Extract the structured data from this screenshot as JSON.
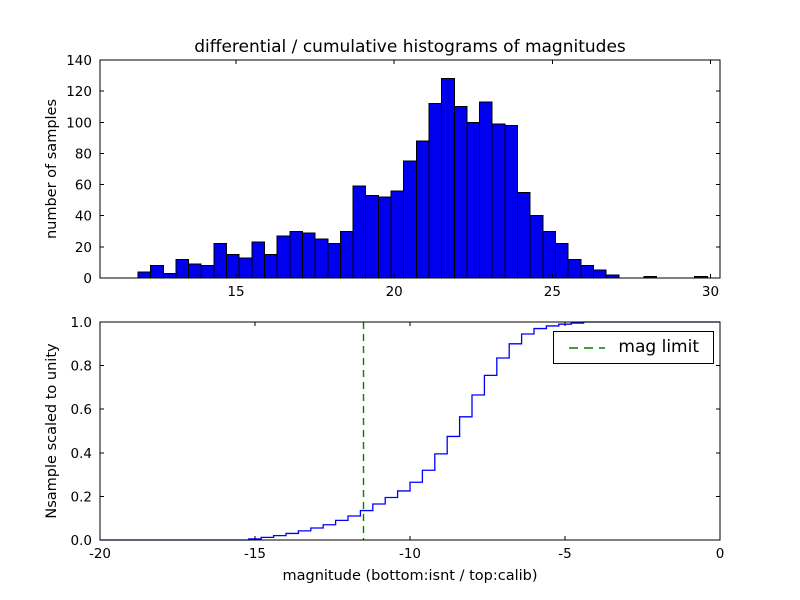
{
  "chart_data": [
    {
      "type": "bar",
      "id": "differential-histogram",
      "title": "differential / cumulative histograms of magnitudes",
      "xlabel": "",
      "ylabel": "number of samples",
      "xlim": [
        10.7,
        30.3
      ],
      "ylim": [
        0,
        140
      ],
      "xticks": [
        15,
        20,
        25,
        30
      ],
      "xticklabels": [
        "15",
        "20",
        "25",
        "30"
      ],
      "yticks": [
        0,
        20,
        40,
        60,
        80,
        100,
        120,
        140
      ],
      "yticklabels": [
        "0",
        "20",
        "40",
        "60",
        "80",
        "100",
        "120",
        "140"
      ],
      "grid": false,
      "bar_color": "#0000ee",
      "bar_edge_color": "#000000",
      "bin_width": 0.4,
      "bins": [
        [
          12.1,
          4
        ],
        [
          12.5,
          8
        ],
        [
          12.9,
          3
        ],
        [
          13.3,
          12
        ],
        [
          13.7,
          9
        ],
        [
          14.1,
          8
        ],
        [
          14.5,
          22
        ],
        [
          14.9,
          15
        ],
        [
          15.3,
          13
        ],
        [
          15.7,
          23
        ],
        [
          16.1,
          15
        ],
        [
          16.5,
          27
        ],
        [
          16.9,
          30
        ],
        [
          17.3,
          29
        ],
        [
          17.7,
          25
        ],
        [
          18.1,
          22
        ],
        [
          18.5,
          30
        ],
        [
          18.9,
          59
        ],
        [
          19.3,
          53
        ],
        [
          19.7,
          52
        ],
        [
          20.1,
          56
        ],
        [
          20.5,
          75
        ],
        [
          20.9,
          88
        ],
        [
          21.3,
          112
        ],
        [
          21.7,
          128
        ],
        [
          22.1,
          110
        ],
        [
          22.5,
          100
        ],
        [
          22.9,
          113
        ],
        [
          23.3,
          99
        ],
        [
          23.7,
          98
        ],
        [
          24.1,
          55
        ],
        [
          24.5,
          40
        ],
        [
          24.9,
          30
        ],
        [
          25.3,
          22
        ],
        [
          25.7,
          12
        ],
        [
          26.1,
          8
        ],
        [
          26.5,
          5
        ],
        [
          26.9,
          2
        ],
        [
          28.1,
          1
        ],
        [
          29.7,
          1
        ]
      ]
    },
    {
      "type": "line",
      "id": "cumulative-histogram",
      "xlabel": "magnitude (bottom:isnt / top:calib)",
      "ylabel": "Nsample scaled to unity",
      "xlim": [
        -20,
        0
      ],
      "ylim": [
        0.0,
        1.0
      ],
      "xticks": [
        -20,
        -15,
        -10,
        -5,
        0
      ],
      "xticklabels": [
        "-20",
        "-15",
        "-10",
        "-5",
        "0"
      ],
      "yticks": [
        0.0,
        0.2,
        0.4,
        0.6,
        0.8,
        1.0
      ],
      "yticklabels": [
        "0.0",
        "0.2",
        "0.4",
        "0.6",
        "0.8",
        "1.0"
      ],
      "grid": false,
      "line_color": "#0000ff",
      "drawstyle": "steps",
      "points": [
        [
          -20,
          0
        ],
        [
          -15.6,
          0
        ],
        [
          -15.2,
          0.005
        ],
        [
          -14.8,
          0.012
        ],
        [
          -14.4,
          0.02
        ],
        [
          -14.0,
          0.03
        ],
        [
          -13.6,
          0.042
        ],
        [
          -13.2,
          0.055
        ],
        [
          -12.8,
          0.07
        ],
        [
          -12.4,
          0.09
        ],
        [
          -12.0,
          0.11
        ],
        [
          -11.6,
          0.135
        ],
        [
          -11.2,
          0.165
        ],
        [
          -10.8,
          0.195
        ],
        [
          -10.4,
          0.225
        ],
        [
          -10.0,
          0.265
        ],
        [
          -9.6,
          0.32
        ],
        [
          -9.2,
          0.395
        ],
        [
          -8.8,
          0.475
        ],
        [
          -8.4,
          0.565
        ],
        [
          -8.0,
          0.665
        ],
        [
          -7.6,
          0.755
        ],
        [
          -7.2,
          0.835
        ],
        [
          -6.8,
          0.9
        ],
        [
          -6.4,
          0.945
        ],
        [
          -6.0,
          0.97
        ],
        [
          -5.6,
          0.982
        ],
        [
          -5.2,
          0.99
        ],
        [
          -4.8,
          0.995
        ],
        [
          -4.4,
          1.0
        ],
        [
          0,
          1.0
        ]
      ],
      "annotations": [
        {
          "type": "vline",
          "x": -11.5,
          "color": "#008000",
          "linestyle": "dashed",
          "label": "mag limit"
        }
      ],
      "legend": {
        "position": "upper right",
        "entries": [
          {
            "label": "mag limit",
            "color": "#008000",
            "linestyle": "dashed"
          }
        ]
      }
    }
  ]
}
